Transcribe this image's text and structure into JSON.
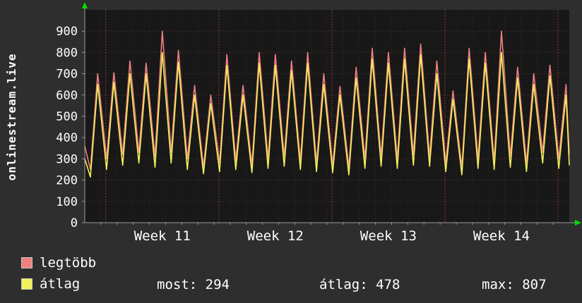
{
  "window": {
    "bg": "#2e2e2e",
    "plot_bg": "#181818",
    "axis_color": "#9a9a9a",
    "arrow_color": "#00e000"
  },
  "title": "onlinestream.live",
  "legend": [
    {
      "label": "legtöbb",
      "color": "#ee8080"
    },
    {
      "label": "átlag",
      "color": "#f2f05c"
    }
  ],
  "stats": [
    {
      "text": "most: 294"
    },
    {
      "text": "átlag: 478"
    },
    {
      "text": "max: 807"
    }
  ],
  "chart_data": {
    "type": "line",
    "title": "onlinestream.live",
    "xlabel": "",
    "ylabel": "",
    "ylim": [
      0,
      1000
    ],
    "yticks": [
      0,
      100,
      200,
      300,
      400,
      500,
      600,
      700,
      800,
      900
    ],
    "grid": true,
    "legend_position": "bottom-left",
    "x_unit": "days",
    "days": 30,
    "week_labels": [
      {
        "label": "Week 11",
        "day": 4.8
      },
      {
        "label": "Week 12",
        "day": 11.8
      },
      {
        "label": "Week 13",
        "day": 18.8
      },
      {
        "label": "Week 14",
        "day": 25.8
      }
    ],
    "week_lines": [
      1.3,
      8.3,
      15.3,
      22.3,
      29.3
    ],
    "series": [
      {
        "name": "legtöbb",
        "color": "#ee8080",
        "start": 360,
        "end": 320,
        "day_troughs": [
          250,
          300,
          320,
          330,
          310,
          330,
          300,
          260,
          280,
          290,
          270,
          300,
          310,
          290,
          280,
          270,
          260,
          300,
          310,
          300,
          320,
          310,
          280,
          260,
          300,
          290,
          310,
          280,
          330,
          300
        ],
        "day_peaks": [
          700,
          705,
          760,
          750,
          900,
          810,
          645,
          600,
          790,
          645,
          800,
          790,
          760,
          800,
          700,
          640,
          730,
          820,
          800,
          820,
          840,
          760,
          620,
          820,
          800,
          900,
          730,
          700,
          740,
          650
        ]
      },
      {
        "name": "átlag",
        "color": "#f2f05c",
        "start": 300,
        "end": 270,
        "day_troughs": [
          215,
          250,
          270,
          280,
          260,
          280,
          250,
          230,
          240,
          250,
          235,
          255,
          265,
          250,
          240,
          235,
          225,
          255,
          265,
          255,
          270,
          265,
          240,
          225,
          255,
          250,
          260,
          240,
          280,
          255
        ],
        "day_peaks": [
          650,
          660,
          700,
          700,
          800,
          755,
          600,
          560,
          740,
          600,
          750,
          740,
          715,
          750,
          650,
          600,
          680,
          770,
          750,
          770,
          790,
          700,
          580,
          770,
          750,
          800,
          680,
          650,
          690,
          600
        ]
      }
    ],
    "summary": {
      "most": 294,
      "atlag": 478,
      "max": 807
    }
  }
}
